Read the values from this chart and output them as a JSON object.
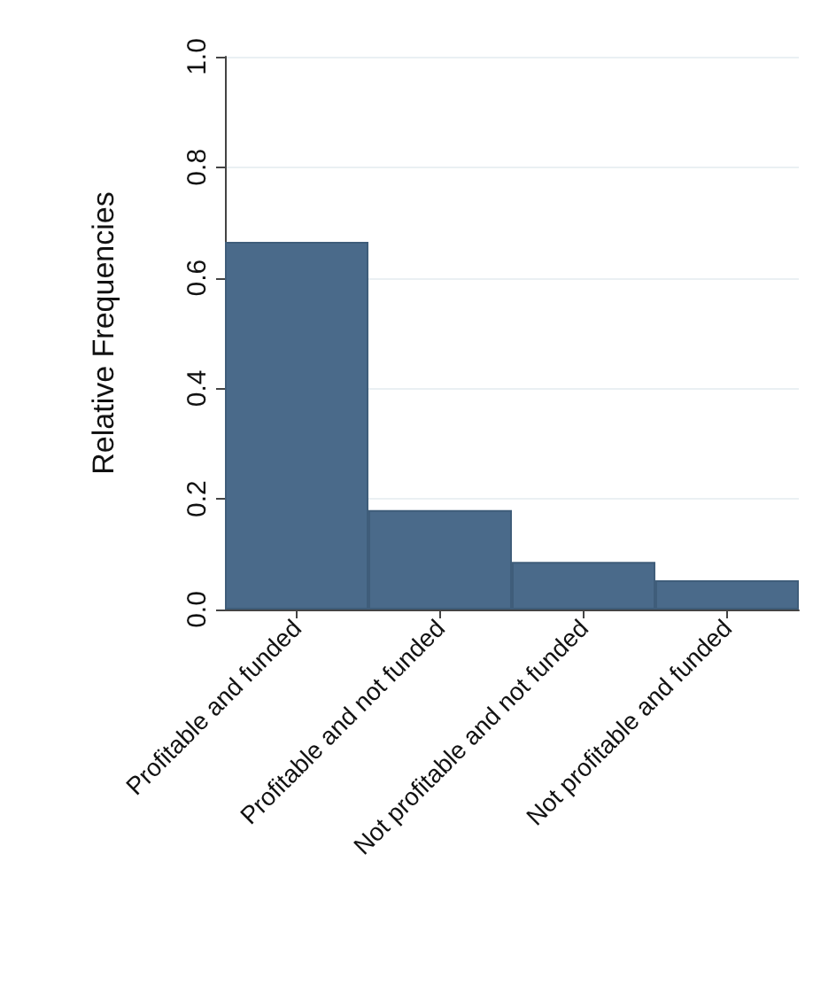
{
  "chart_data": {
    "type": "bar",
    "ylabel": "Relative Frequencies",
    "categories": [
      "Profitable and funded",
      "Profitable and not funded",
      "Not profitable and not funded",
      "Not profitable and funded"
    ],
    "values": [
      0.665,
      0.18,
      0.086,
      0.053
    ],
    "color": "#4a6a8a",
    "ylim": [
      0,
      1
    ],
    "yticks": [
      {
        "value": 0,
        "label": "0.0"
      },
      {
        "value": 0.2,
        "label": "0.2"
      },
      {
        "value": 0.4,
        "label": "0.4"
      },
      {
        "value": 0.6,
        "label": "0.6"
      },
      {
        "value": 0.8,
        "label": "0.8"
      },
      {
        "value": 1,
        "label": "1.0"
      }
    ],
    "grid": "y"
  }
}
